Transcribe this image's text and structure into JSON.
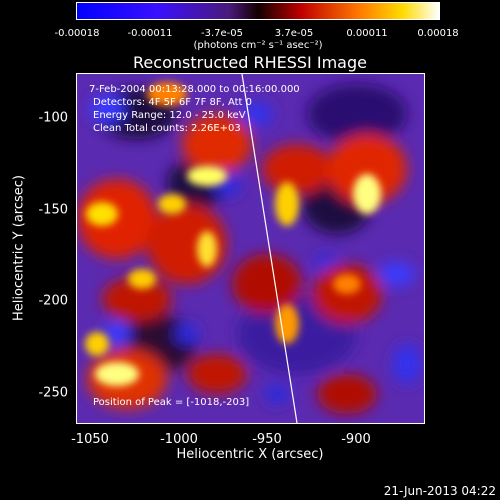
{
  "colorbar": {
    "ticks": [
      "-0.00018",
      "-0.00011",
      "-3.7e-05",
      "3.7e-05",
      "0.00011",
      "0.00018"
    ],
    "unit_label": "(photons cm⁻² s⁻¹ asec⁻²)"
  },
  "title": "Reconstructed RHESSI Image",
  "annotations": {
    "time_range": "7-Feb-2004 00:13:28.000 to 00:16:00.000",
    "detectors": "Detectors: 4F 5F 6F 7F 8F, Att 0",
    "energy": "Energy Range: 12.0 - 25.0 keV",
    "method": "Clean    Total counts: 2.26E+03",
    "peak": "Position of Peak = [-1018,-203]"
  },
  "axes": {
    "xlabel": "Heliocentric X (arcsec)",
    "ylabel": "Heliocentric Y (arcsec)",
    "xticks": [
      "-1050",
      "-1000",
      "-950",
      "-900"
    ],
    "yticks": [
      "-100",
      "-150",
      "-200",
      "-250"
    ]
  },
  "timestamp": "21-Jun-2013 04:22",
  "colors": {
    "background": "#000000",
    "low": "#1d1dff",
    "mid": "#ff2a00",
    "high": "#ffffff"
  }
}
